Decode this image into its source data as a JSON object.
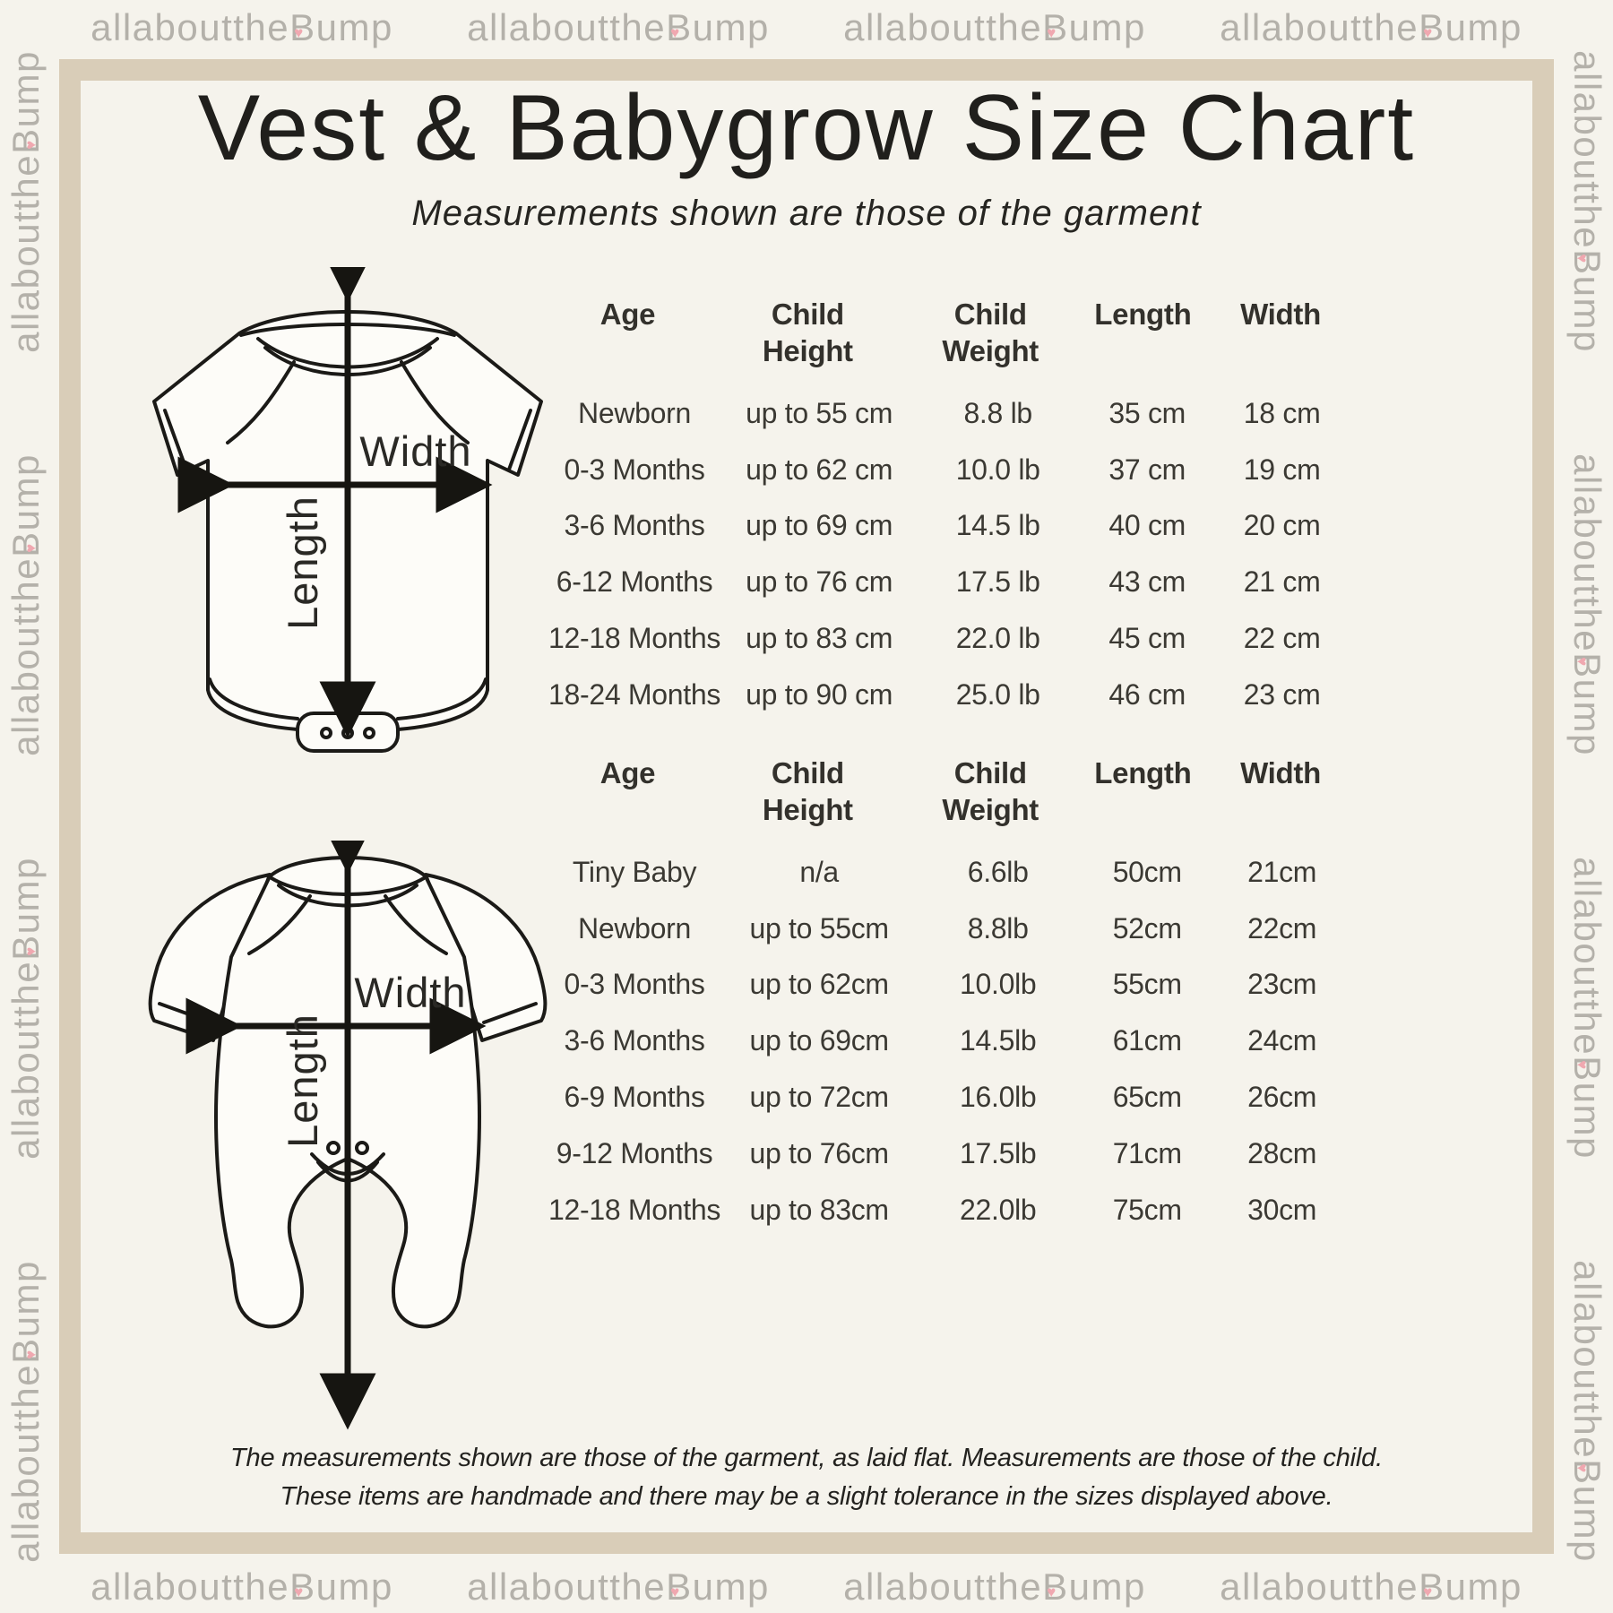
{
  "page": {
    "title": "Vest & Babygrow Size Chart",
    "subtitle": "Measurements shown are those of the garment",
    "footer_line1": "The measurements shown are those of the garment, as laid flat. Measurements are those of the child.",
    "footer_line2": "These items are handmade and there may be a slight tolerance in the sizes displayed above."
  },
  "watermark": {
    "pre": "allaboutthe",
    "cap": "B",
    "heart": "♥",
    "post": "ump"
  },
  "colors": {
    "background": "#f5f3ec",
    "frame": "#d9cdb8",
    "text": "#3b3933",
    "watermark": "#b4b1aa",
    "watermark_heart": "#f0a8b0",
    "line_art": "#1b1a17"
  },
  "diagram_labels": {
    "width": "Width",
    "length": "Length"
  },
  "tables": [
    {
      "name": "vest",
      "columns": [
        "Age",
        "Child Height",
        "Child Weight",
        "Length",
        "Width"
      ],
      "rows": [
        [
          "Newborn",
          "up to 55 cm",
          "8.8 lb",
          "35 cm",
          "18 cm"
        ],
        [
          "0-3 Months",
          "up to 62 cm",
          "10.0 lb",
          "37 cm",
          "19 cm"
        ],
        [
          "3-6 Months",
          "up to 69 cm",
          "14.5 lb",
          "40 cm",
          "20 cm"
        ],
        [
          "6-12 Months",
          "up to 76 cm",
          "17.5 lb",
          "43 cm",
          "21 cm"
        ],
        [
          "12-18 Months",
          "up to 83 cm",
          "22.0 lb",
          "45 cm",
          "22 cm"
        ],
        [
          "18-24 Months",
          "up to 90 cm",
          "25.0 lb",
          "46 cm",
          "23 cm"
        ]
      ]
    },
    {
      "name": "babygrow",
      "columns": [
        "Age",
        "Child Height",
        "Child Weight",
        "Length",
        "Width"
      ],
      "rows": [
        [
          "Tiny Baby",
          "n/a",
          "6.6lb",
          "50cm",
          "21cm"
        ],
        [
          "Newborn",
          "up to 55cm",
          "8.8lb",
          "52cm",
          "22cm"
        ],
        [
          "0-3 Months",
          "up to 62cm",
          "10.0lb",
          "55cm",
          "23cm"
        ],
        [
          "3-6 Months",
          "up to 69cm",
          "14.5lb",
          "61cm",
          "24cm"
        ],
        [
          "6-9 Months",
          "up to 72cm",
          "16.0lb",
          "65cm",
          "26cm"
        ],
        [
          "9-12 Months",
          "up to 76cm",
          "17.5lb",
          "71cm",
          "28cm"
        ],
        [
          "12-18 Months",
          "up to 83cm",
          "22.0lb",
          "75cm",
          "30cm"
        ]
      ]
    }
  ]
}
